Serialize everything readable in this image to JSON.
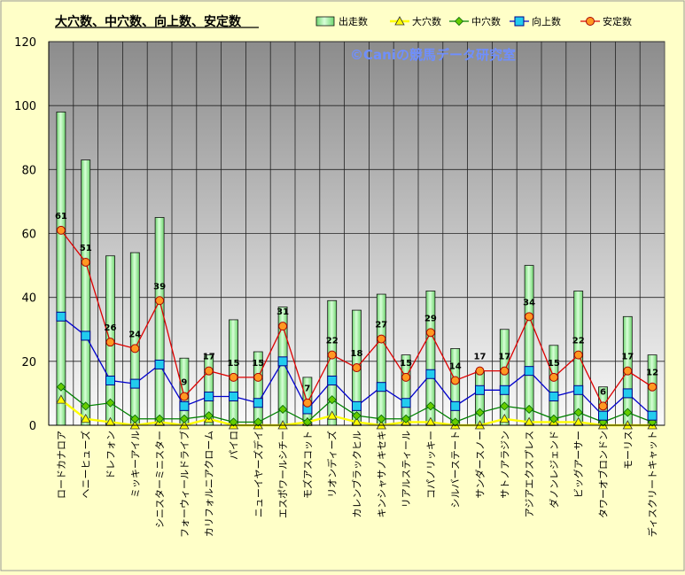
{
  "chart_data": {
    "type": "bar",
    "title": "大穴数、中穴数、向上数、安定数",
    "watermark": "©Caniの競馬データ研究室",
    "ylim": [
      0,
      120
    ],
    "yticks": [
      0,
      20,
      40,
      60,
      80,
      100,
      120
    ],
    "grid": true,
    "legend_position": "top-right",
    "categories": [
      "ロードカナロア",
      "ヘニーヒューズ",
      "ドレフォン",
      "ミッキーアイル",
      "シニスターミニスター",
      "フォーウィールドライブ",
      "カリフォルニアクローム",
      "パイロ",
      "ニューイヤーズデイ",
      "エスポワールシチー",
      "モズアスコット",
      "リオンディーズ",
      "カレンブラックヒル",
      "キンシャサノキセキ",
      "リアルスティール",
      "コパノリッキー",
      "シルバーステート",
      "サンダースノー",
      "サトノアラジン",
      "アジアエクスプレス",
      "ダノンレジェンド",
      "ビッグアーサー",
      "タワーオブロンドン",
      "モーリス",
      "ディスクリートキャット"
    ],
    "series": [
      {
        "name": "出走数",
        "kind": "bar",
        "color": "#90ee90",
        "values": [
          98,
          83,
          53,
          54,
          65,
          21,
          22,
          33,
          23,
          37,
          15,
          39,
          36,
          41,
          22,
          42,
          24,
          17,
          30,
          50,
          25,
          42,
          12,
          34,
          22
        ]
      },
      {
        "name": "大穴数",
        "kind": "line",
        "color": "#ffff00",
        "marker": "triangle",
        "values": [
          8,
          2,
          1,
          0,
          1,
          0,
          2,
          0,
          0,
          0,
          1,
          3,
          1,
          0,
          1,
          1,
          0,
          0,
          2,
          1,
          1,
          1,
          0,
          0,
          0
        ]
      },
      {
        "name": "中穴数",
        "kind": "line",
        "color": "#008000",
        "marker": "diamond",
        "values": [
          12,
          6,
          7,
          2,
          2,
          2,
          3,
          1,
          1,
          5,
          1,
          8,
          3,
          2,
          2,
          6,
          1,
          4,
          6,
          5,
          2,
          4,
          1,
          4,
          1
        ]
      },
      {
        "name": "向上数",
        "kind": "line",
        "color": "#0000cc",
        "marker": "square",
        "values": [
          34,
          28,
          14,
          13,
          19,
          6,
          9,
          9,
          7,
          20,
          5,
          14,
          6,
          12,
          7,
          16,
          6,
          11,
          11,
          17,
          9,
          11,
          3,
          10,
          3
        ]
      },
      {
        "name": "安定数",
        "kind": "line",
        "color": "#dd0000",
        "marker": "circle",
        "values": [
          61,
          51,
          26,
          24,
          39,
          9,
          17,
          15,
          15,
          31,
          7,
          22,
          18,
          27,
          15,
          29,
          14,
          17,
          17,
          34,
          15,
          22,
          6,
          17,
          12
        ]
      }
    ]
  }
}
